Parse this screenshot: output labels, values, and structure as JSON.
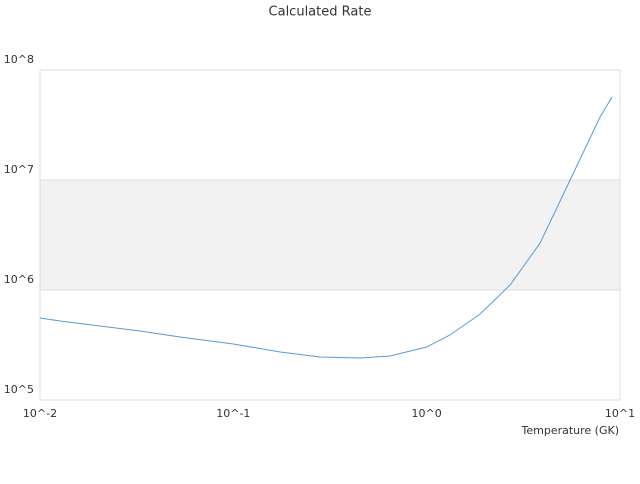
{
  "chart_data": {
    "type": "line",
    "title": "Calculated Rate",
    "x_label": "Temperature (GK)",
    "xscale": "log",
    "yscale": "log",
    "bands": true,
    "x": [
      0.01,
      0.0127,
      0.0204,
      0.0329,
      0.053,
      0.1,
      0.175,
      0.281,
      0.452,
      0.646,
      1.0,
      1.32,
      1.89,
      2.7,
      3.86,
      5.52,
      7.89,
      9.1
    ],
    "series": [
      {
        "color": "#5b9bd5",
        "values": [
          556000,
          522000,
          471000,
          424000,
          374000,
          323000,
          273000,
          246000,
          241000,
          251000,
          303000,
          390000,
          605000,
          1110000,
          2670000,
          10000000,
          37400000,
          56900000
        ]
      }
    ],
    "xlim": [
      0.01,
      10
    ],
    "ylim": [
      100000,
      100000000
    ],
    "xticks": [
      {
        "value": 0.01,
        "label": "10^-2"
      },
      {
        "value": 0.1,
        "label": "10^-1"
      },
      {
        "value": 1,
        "label": "10^0"
      },
      {
        "value": 10,
        "label": "10^1"
      }
    ],
    "yticks": [
      {
        "value": 100000,
        "label": "10^5"
      },
      {
        "value": 1000000,
        "label": "10^6"
      },
      {
        "value": 10000000,
        "label": "10^7"
      },
      {
        "value": 100000000,
        "label": "10^8"
      }
    ]
  }
}
